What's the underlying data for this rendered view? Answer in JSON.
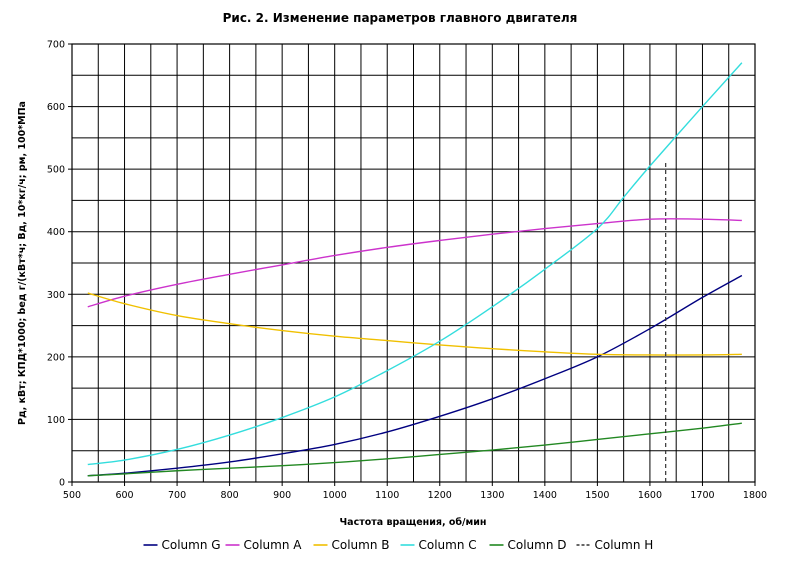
{
  "chart_data": {
    "type": "line",
    "title": "Рис. 2. Изменение параметров главного двигателя",
    "xlabel": "Частота вращения, об/мин",
    "ylabel": "Pд, кВт;  КПД*1000;  bед г/(кВт*ч;  Вд, 10*кг/ч;  pм, 100*МПа",
    "xlim": [
      500,
      1800
    ],
    "ylim": [
      0,
      700
    ],
    "xticks": [
      500,
      600,
      700,
      800,
      900,
      1000,
      1100,
      1200,
      1300,
      1400,
      1500,
      1600,
      1700,
      1800
    ],
    "yticks": [
      0,
      100,
      200,
      300,
      400,
      500,
      600,
      700
    ],
    "grid": true,
    "legend_position": "bottom",
    "series": [
      {
        "name": "Column G",
        "color": "#000080",
        "style": "solid",
        "x": [
          530,
          600,
          700,
          800,
          900,
          1000,
          1100,
          1200,
          1300,
          1400,
          1500,
          1600,
          1700,
          1775
        ],
        "y": [
          10,
          14,
          22,
          32,
          45,
          60,
          80,
          105,
          133,
          165,
          200,
          245,
          295,
          330
        ]
      },
      {
        "name": "Column A",
        "color": "#cc33cc",
        "style": "solid",
        "x": [
          530,
          600,
          700,
          800,
          900,
          1000,
          1100,
          1200,
          1300,
          1400,
          1500,
          1600,
          1700,
          1775
        ],
        "y": [
          280,
          297,
          316,
          332,
          347,
          362,
          375,
          386,
          396,
          405,
          413,
          420,
          420,
          418
        ]
      },
      {
        "name": "Column B",
        "color": "#f0c000",
        "style": "solid",
        "x": [
          530,
          600,
          700,
          800,
          900,
          1000,
          1100,
          1200,
          1300,
          1400,
          1500,
          1600,
          1700,
          1775
        ],
        "y": [
          302,
          285,
          266,
          253,
          242,
          233,
          226,
          219,
          213,
          208,
          204,
          203,
          203,
          204
        ]
      },
      {
        "name": "Column C",
        "color": "#33dddd",
        "style": "solid",
        "x": [
          530,
          600,
          700,
          800,
          900,
          1000,
          1100,
          1200,
          1300,
          1400,
          1500,
          1550,
          1600,
          1700,
          1775
        ],
        "y": [
          28,
          35,
          52,
          75,
          103,
          136,
          178,
          225,
          280,
          340,
          405,
          455,
          505,
          600,
          670
        ]
      },
      {
        "name": "Column D",
        "color": "#228822",
        "style": "solid",
        "x": [
          530,
          600,
          700,
          800,
          900,
          1000,
          1100,
          1200,
          1300,
          1400,
          1500,
          1600,
          1700,
          1775
        ],
        "y": [
          10,
          13,
          18,
          22,
          26,
          31,
          37,
          44,
          51,
          59,
          68,
          77,
          86,
          94
        ]
      },
      {
        "name": "Column H",
        "color": "#333333",
        "style": "dashed",
        "x": [
          1630,
          1630
        ],
        "y": [
          0,
          512
        ]
      }
    ]
  }
}
